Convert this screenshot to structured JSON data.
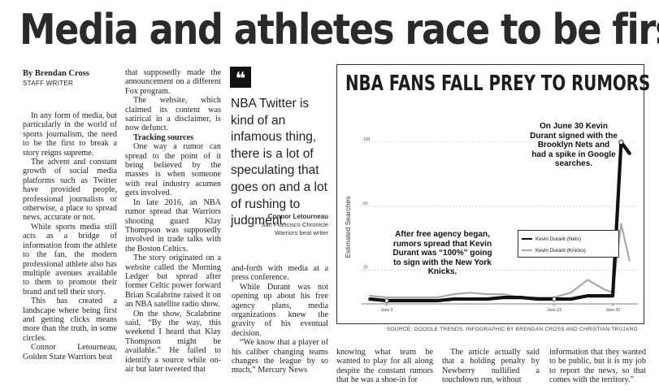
{
  "headline": "Media and athletes race to be first",
  "byline": "By Brendan Cross",
  "staff": "STAFF WRITER",
  "col1": [
    "In any form of media, but particularly in the world of sports journalism, the need to be the first to break a story reigns supreme.",
    "The advent and constant growth of social media platforms such as Twitter have provided people, professional journalists or otherwise, a place to spread news, accurate or not.",
    "While sports media still acts as a bridge of information from the athlete to the fan, the modern professional athlete also has multiple avenues available to them to promote their brand and tell their story.",
    "This has created a landscape where being first and getting clicks means more than the truth, in some circles.",
    "Connor Letourneau, Golden State Warriors beat"
  ],
  "col2_lead": "that supposedly made the announcement on a different Fox program.",
  "col2_a": "The website, which claimed its content was satirical in a disclaimer, is now defunct.",
  "col2_sub": "Tracking sources",
  "col2_b": [
    "One way a rumor can spread to the point of it being believed by the masses is when someone with real industry acumen gets involved.",
    "In late 2016, an NBA rumor spread that Warriors shooting guard Klay Thompson was supposedly involved in trade talks with the Boston Celtics.",
    "The story originated on a website called the Morning Ledger but spread after former Celtic power forward Brian Scalabrine raised it on an NBA satellite radio show.",
    "On the show, Scalabrine said, “By the way, this weekend I heard that Klay Thompson might be available.” He failed to identify a source while on-air but later tweeted that"
  ],
  "pull_quote": "NBA Twitter is kind of an infamous thing, there is a lot of speculating that goes on and a lot of rushing to judgment.",
  "attr_name": "Connor Letourneau",
  "attr_line1": "San Francisco Chronicle",
  "attr_line2": "Warriors beat writer",
  "col3_lead": "and-forth with media at a press conference.",
  "col3": [
    "While Durant was not opening up about his free agency plans, media organizations knew the gravity of his eventual decision.",
    "“We know that a player of his caliber changing teams changes the league by so much,” Mercury News"
  ],
  "col4": "knowing what team he wanted to play for all along despite the constant rumors that he was a shoe-in for",
  "col5": "The article actually said that a holding penalty by Newberry nullified a touchdown run, without",
  "col6": "information that they wanted to be public, but it is my job to report the news, so that comes with the territory.”",
  "source": "SOURCE: GOOGLE TRENDS. INFOGRAPHIC BY BRENDAN CROSS AND CHRISTIAN TRUJANO",
  "chart_data": {
    "type": "line",
    "title": "NBA FANS FALL PREY TO RUMORS",
    "ylabel": "Estimated Searches",
    "ylim": [
      0,
      100
    ],
    "yticks": [
      20,
      60,
      100
    ],
    "ytick_labels": [
      "20",
      "60",
      "100"
    ],
    "xticks": [
      "June 3",
      "June 23",
      "June 30"
    ],
    "x": [
      1,
      3,
      5,
      7,
      9,
      11,
      13,
      15,
      17,
      19,
      21,
      23,
      25,
      27,
      29,
      30,
      31,
      32
    ],
    "series": [
      {
        "name": "Kevin Durant (Nets)",
        "color": "#111111",
        "values": [
          2,
          1,
          1,
          1,
          1,
          2,
          2,
          2,
          3,
          3,
          2,
          2,
          2,
          4,
          4,
          4,
          100,
          93
        ]
      },
      {
        "name": "Kevin Durant (Knicks)",
        "color": "#aaaaaa",
        "values": [
          4,
          3,
          3,
          3,
          3,
          5,
          6,
          5,
          5,
          3,
          3,
          3,
          6,
          14,
          8,
          6,
          49,
          26
        ]
      }
    ],
    "annotation_nets": "On June 30 Kevin Durant signed with the Brooklyn Nets and had a spike in Google searches.",
    "annotation_knicks": "After free agency began, rumors spread that Kevin Durant was “100%” going to sign with the New York Knicks.",
    "legend_position": "right"
  }
}
